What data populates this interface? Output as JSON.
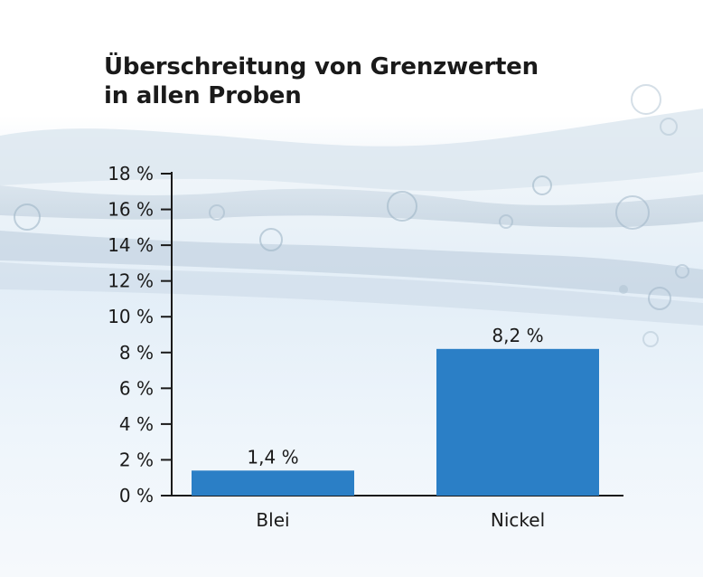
{
  "chart_data": {
    "type": "bar",
    "title": "Überschreitung von Grenzwerten in allen Proben",
    "title_lines": [
      "Überschreitung von Grenzwerten",
      "in allen Proben"
    ],
    "categories": [
      "Blei",
      "Nickel"
    ],
    "values": [
      1.4,
      8.2
    ],
    "value_labels": [
      "1,4 %",
      "8,2 %"
    ],
    "y_ticks": [
      0,
      2,
      4,
      6,
      8,
      10,
      12,
      14,
      16,
      18
    ],
    "y_tick_labels": [
      "0 %",
      "2 %",
      "4 %",
      "6 %",
      "8 %",
      "10 %",
      "12 %",
      "14 %",
      "16 %",
      "18 %"
    ],
    "ylim": [
      0,
      18
    ],
    "xlabel": "",
    "ylabel": "",
    "grid": false,
    "bar_color": "#2b7fc6"
  }
}
